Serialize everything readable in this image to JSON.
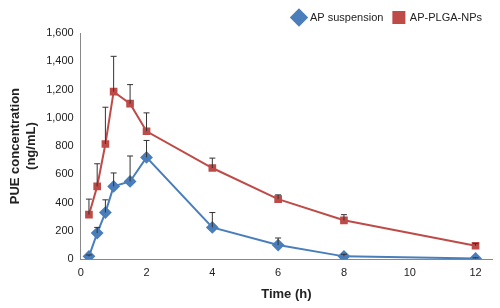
{
  "chart_data": {
    "type": "line",
    "x_label": "Time (h)",
    "y_label": [
      "PUE concentration",
      "(ng/mL)"
    ],
    "x": [
      0.25,
      0.5,
      0.75,
      1,
      1.5,
      2,
      4,
      6,
      8,
      12
    ],
    "series": [
      {
        "name": "AP suspension",
        "color": "#4a7ebb",
        "marker": "diamond",
        "values": [
          20,
          185,
          330,
          515,
          550,
          720,
          225,
          100,
          20,
          5
        ],
        "errors": [
          10,
          40,
          90,
          95,
          180,
          120,
          105,
          50,
          15,
          5
        ]
      },
      {
        "name": "AP-PLGA-NPs",
        "color": "#be4b48",
        "marker": "square",
        "values": [
          315,
          515,
          815,
          1185,
          1100,
          905,
          645,
          425,
          275,
          95
        ],
        "errors": [
          110,
          160,
          260,
          250,
          135,
          130,
          70,
          30,
          40,
          15
        ]
      }
    ],
    "xlim": [
      0,
      12.5
    ],
    "xticks": [
      0,
      2,
      4,
      6,
      8,
      10,
      12
    ],
    "ylim": [
      0,
      1600
    ],
    "yticks": [
      0,
      200,
      400,
      600,
      800,
      {
        "value": 1000,
        "label": "1,000"
      },
      {
        "value": 1200,
        "label": "1,200"
      },
      {
        "value": 1400,
        "label": "1,400"
      },
      {
        "value": 1600,
        "label": "1,600"
      }
    ],
    "grid": false,
    "legend": "top-right"
  }
}
